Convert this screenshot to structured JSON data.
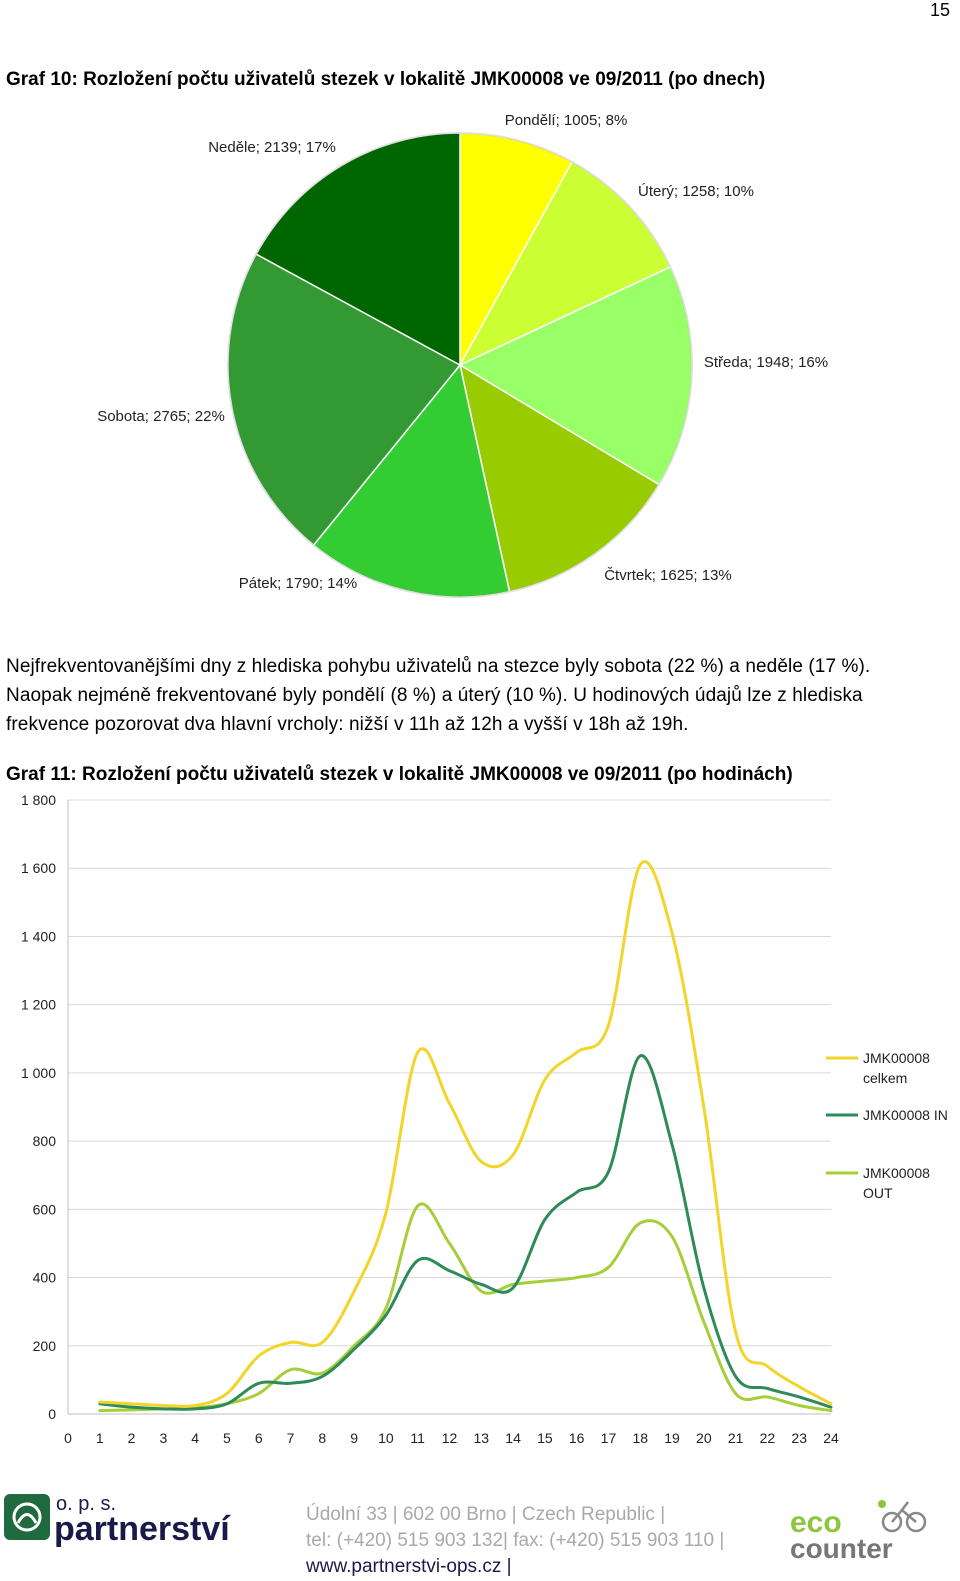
{
  "page_number": "15",
  "graph10": {
    "title": "Graf 10: Rozložení počtu uživatelů stezek v lokalitě JMK00008 ve 09/2011 (po dnech)"
  },
  "paragraph": {
    "line1": "Nejfrekventovanějšími dny z hlediska pohybu uživatelů na stezce byly sobota (22 %) a neděle (17 %).",
    "line2": "Naopak nejméně frekventované byly pondělí (8 %) a úterý (10 %). U hodinových údajů lze z hlediska",
    "line3": "frekvence pozorovat dva hlavní vrcholy: nižší v 11h až 12h a vyšší v 18h až 19h."
  },
  "graph11": {
    "title": "Graf 11: Rozložení počtu uživatelů stezek v lokalitě JMK00008 ve 09/2011 (po hodinách)"
  },
  "footer": {
    "org_small": "o. p. s.",
    "org_name": "partnerství",
    "address_line1": "Údolní 33 | 602 00 Brno | Czech Republic |",
    "address_line2": "tel: (+420) 515 903 132| fax: (+420) 515 903 110 |",
    "address_line3": "www.partnerstvi-ops.cz |",
    "partner_logo_top": "eco",
    "partner_logo_bottom": "counter"
  },
  "chart_data": [
    {
      "type": "pie",
      "title": "Graf 10: Rozložení počtu uživatelů stezek v lokalitě JMK00008 ve 09/2011 (po dnech)",
      "slices": [
        {
          "label": "Pondělí; 1005; 8%",
          "name": "Pondělí",
          "value": 1005,
          "percent": 8,
          "color": "#ffff00"
        },
        {
          "label": "Úterý; 1258; 10%",
          "name": "Úterý",
          "value": 1258,
          "percent": 10,
          "color": "#ccff33"
        },
        {
          "label": "Středa; 1948; 16%",
          "name": "Středa",
          "value": 1948,
          "percent": 16,
          "color": "#99ff66"
        },
        {
          "label": "Čtvrtek; 1625; 13%",
          "name": "Čtvrtek",
          "value": 1625,
          "percent": 13,
          "color": "#99cc00"
        },
        {
          "label": "Pátek; 1790; 14%",
          "name": "Pátek",
          "value": 1790,
          "percent": 14,
          "color": "#33cc33"
        },
        {
          "label": "Sobota; 2765; 22%",
          "name": "Sobota",
          "value": 2765,
          "percent": 22,
          "color": "#339933"
        },
        {
          "label": "Neděle; 2139; 17%",
          "name": "Neděle",
          "value": 2139,
          "percent": 17,
          "color": "#006600"
        }
      ]
    },
    {
      "type": "line",
      "title": "Graf 11: Rozložení počtu uživatelů stezek v lokalitě JMK00008 ve 09/2011 (po hodinách)",
      "xlabel": "",
      "ylabel": "",
      "x": [
        0,
        1,
        2,
        3,
        4,
        5,
        6,
        7,
        8,
        9,
        10,
        11,
        12,
        13,
        14,
        15,
        16,
        17,
        18,
        19,
        20,
        21,
        22,
        23,
        24
      ],
      "x_tick_labels": [
        "0",
        "1",
        "2",
        "3",
        "4",
        "5",
        "6",
        "7",
        "8",
        "9",
        "10",
        "11",
        "12",
        "13",
        "14",
        "15",
        "16",
        "17",
        "18",
        "19",
        "20",
        "21",
        "22",
        "23",
        "24"
      ],
      "y_ticks": [
        0,
        200,
        400,
        600,
        800,
        1000,
        1200,
        1400,
        1600,
        1800
      ],
      "y_tick_labels": [
        "0",
        "200",
        "400",
        "600",
        "800",
        "1 000",
        "1 200",
        "1 400",
        "1 600",
        "1 800"
      ],
      "ylim": [
        0,
        1800
      ],
      "grid": true,
      "legend_position": "right",
      "series": [
        {
          "name": "JMK00008 celkem",
          "color": "#f2d52a",
          "values": [
            null,
            35,
            30,
            25,
            25,
            60,
            170,
            210,
            210,
            360,
            590,
            1060,
            910,
            740,
            760,
            980,
            1060,
            1140,
            1610,
            1410,
            900,
            240,
            140,
            80,
            30
          ]
        },
        {
          "name": "JMK00008 IN",
          "color": "#2e8b57",
          "values": [
            null,
            30,
            20,
            15,
            15,
            30,
            90,
            90,
            110,
            190,
            290,
            450,
            420,
            380,
            370,
            570,
            650,
            710,
            1050,
            790,
            370,
            110,
            75,
            50,
            20
          ]
        },
        {
          "name": "JMK00008 OUT",
          "color": "#a6ce39",
          "values": [
            null,
            10,
            12,
            15,
            18,
            30,
            60,
            130,
            120,
            200,
            310,
            610,
            500,
            360,
            380,
            390,
            400,
            430,
            560,
            520,
            270,
            60,
            50,
            25,
            10
          ]
        }
      ]
    }
  ]
}
